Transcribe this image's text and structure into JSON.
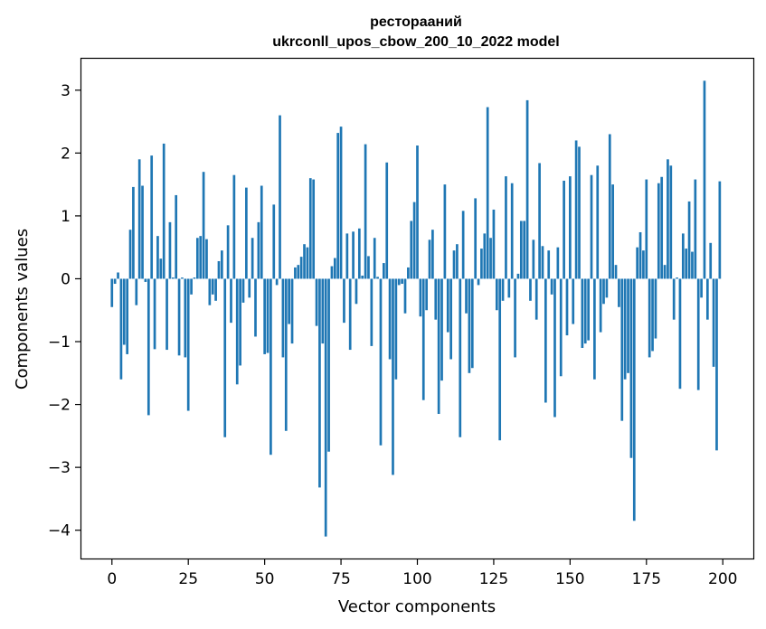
{
  "chart_data": {
    "type": "bar",
    "title_line1": "ресторааний",
    "title_line2": "ukrconll_upos_cbow_200_10_2022 model",
    "xlabel": "Vector components",
    "ylabel": "Components values",
    "xlim": [
      -10,
      210
    ],
    "ylim": [
      -4.45,
      3.5
    ],
    "xticks": [
      0,
      25,
      50,
      75,
      100,
      125,
      150,
      175,
      200
    ],
    "yticks": [
      -4,
      -3,
      -2,
      -1,
      0,
      1,
      2,
      3
    ],
    "bar_color": "#1f77b4",
    "grid": false,
    "x": [
      0,
      1,
      2,
      3,
      4,
      5,
      6,
      7,
      8,
      9,
      10,
      11,
      12,
      13,
      14,
      15,
      16,
      17,
      18,
      19,
      20,
      21,
      22,
      23,
      24,
      25,
      26,
      27,
      28,
      29,
      30,
      31,
      32,
      33,
      34,
      35,
      36,
      37,
      38,
      39,
      40,
      41,
      42,
      43,
      44,
      45,
      46,
      47,
      48,
      49,
      50,
      51,
      52,
      53,
      54,
      55,
      56,
      57,
      58,
      59,
      60,
      61,
      62,
      63,
      64,
      65,
      66,
      67,
      68,
      69,
      70,
      71,
      72,
      73,
      74,
      75,
      76,
      77,
      78,
      79,
      80,
      81,
      82,
      83,
      84,
      85,
      86,
      87,
      88,
      89,
      90,
      91,
      92,
      93,
      94,
      95,
      96,
      97,
      98,
      99,
      100,
      101,
      102,
      103,
      104,
      105,
      106,
      107,
      108,
      109,
      110,
      111,
      112,
      113,
      114,
      115,
      116,
      117,
      118,
      119,
      120,
      121,
      122,
      123,
      124,
      125,
      126,
      127,
      128,
      129,
      130,
      131,
      132,
      133,
      134,
      135,
      136,
      137,
      138,
      139,
      140,
      141,
      142,
      143,
      144,
      145,
      146,
      147,
      148,
      149,
      150,
      151,
      152,
      153,
      154,
      155,
      156,
      157,
      158,
      159,
      160,
      161,
      162,
      163,
      164,
      165,
      166,
      167,
      168,
      169,
      170,
      171,
      172,
      173,
      174,
      175,
      176,
      177,
      178,
      179,
      180,
      181,
      182,
      183,
      184,
      185,
      186,
      187,
      188,
      189,
      190,
      191,
      192,
      193,
      194,
      195,
      196,
      197,
      198,
      199
    ],
    "values": [
      -0.45,
      -0.08,
      0.1,
      -1.6,
      -1.05,
      -1.2,
      0.78,
      1.46,
      -0.42,
      1.9,
      1.48,
      -0.05,
      -2.17,
      1.96,
      -1.12,
      0.68,
      0.32,
      2.15,
      -1.13,
      0.9,
      0.02,
      1.33,
      -1.22,
      0.02,
      -1.25,
      -2.1,
      -0.25,
      0.02,
      0.65,
      0.68,
      1.7,
      0.63,
      -0.42,
      -0.25,
      -0.35,
      0.28,
      0.45,
      -2.52,
      0.85,
      -0.7,
      1.65,
      -1.68,
      -1.38,
      -0.38,
      1.45,
      -0.3,
      0.65,
      -0.92,
      0.9,
      1.48,
      -1.2,
      -1.18,
      -2.8,
      1.18,
      -0.1,
      2.6,
      -1.25,
      -2.42,
      -0.72,
      -1.03,
      0.18,
      0.22,
      0.35,
      0.55,
      0.5,
      1.6,
      1.58,
      -0.75,
      -3.32,
      -1.03,
      -4.1,
      -2.75,
      0.2,
      0.33,
      2.32,
      2.42,
      -0.7,
      0.72,
      -1.13,
      0.75,
      -0.4,
      0.8,
      0.05,
      2.14,
      0.36,
      -1.07,
      0.65,
      0.03,
      -2.65,
      0.25,
      1.85,
      -1.28,
      -3.12,
      -1.6,
      -0.1,
      -0.08,
      -0.55,
      0.18,
      0.92,
      1.22,
      2.12,
      -0.6,
      -1.93,
      -0.5,
      0.62,
      0.78,
      -0.65,
      -2.15,
      -1.62,
      1.5,
      -0.85,
      -1.28,
      0.45,
      0.55,
      -2.52,
      1.08,
      -0.55,
      -1.5,
      -1.42,
      1.28,
      -0.1,
      0.48,
      0.72,
      2.73,
      0.65,
      1.1,
      -0.5,
      -2.57,
      -0.35,
      1.63,
      -0.3,
      1.52,
      -1.25,
      0.08,
      0.92,
      0.92,
      2.84,
      -0.35,
      0.62,
      -0.65,
      1.84,
      0.52,
      -1.97,
      0.45,
      -0.25,
      -2.2,
      0.5,
      -1.55,
      1.56,
      -0.9,
      1.63,
      -0.72,
      2.2,
      2.1,
      -1.1,
      -1.03,
      -0.98,
      1.65,
      -1.6,
      1.8,
      -0.85,
      -0.4,
      -0.3,
      2.3,
      1.5,
      0.22,
      -0.45,
      -2.26,
      -1.6,
      -1.5,
      -2.85,
      -3.85,
      0.5,
      0.74,
      0.45,
      1.58,
      -1.25,
      -1.15,
      -0.95,
      1.52,
      1.62,
      0.22,
      1.9,
      1.8,
      -0.65,
      0.02,
      -1.75,
      0.72,
      0.48,
      1.23,
      0.43,
      1.58,
      -1.77,
      -0.3,
      3.15,
      -0.65,
      0.57,
      -1.4,
      -2.73,
      1.55
    ]
  }
}
